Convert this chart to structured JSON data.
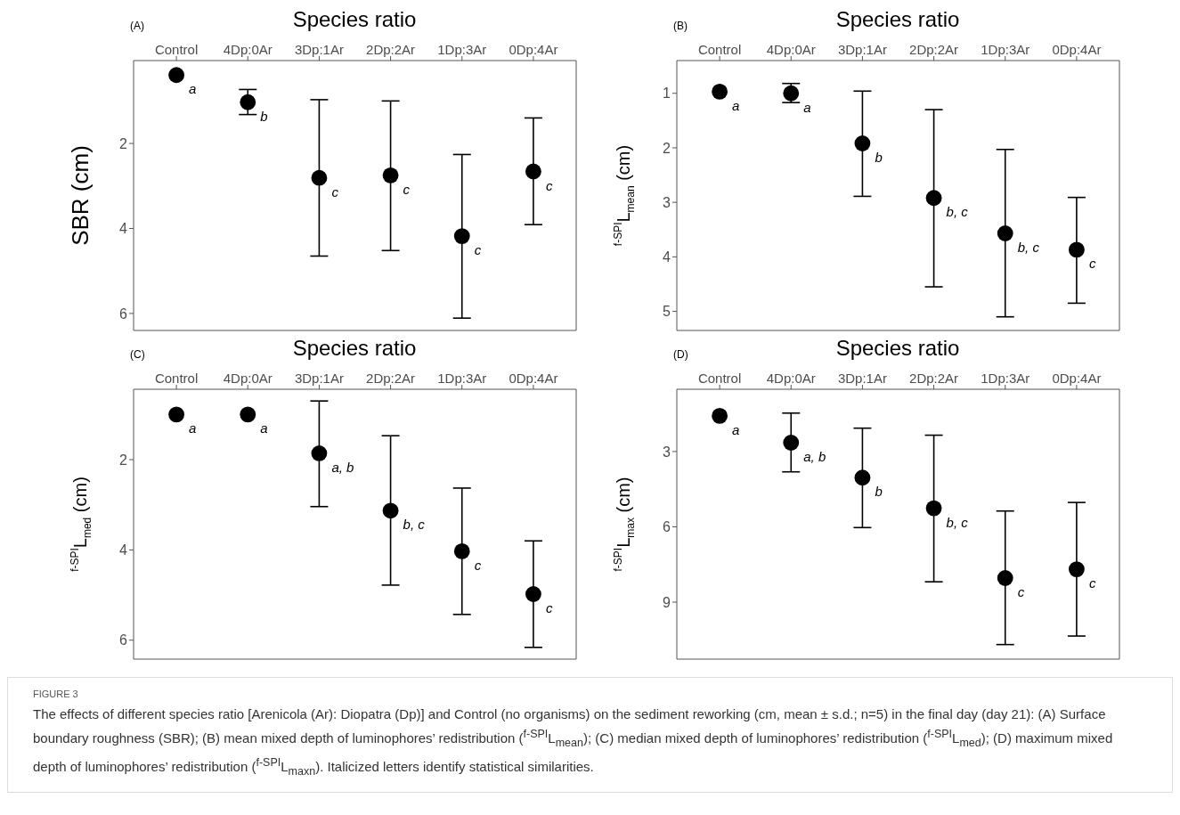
{
  "chart_data": [
    {
      "type": "scatter",
      "title": "(A)",
      "xlabel": "Species ratio",
      "ylabel": "SBR (cm)",
      "categories": [
        "Control",
        "4Dp:0Ar",
        "3Dp:1Ar",
        "2Dp:2Ar",
        "1Dp:3Ar",
        "0Dp:4Ar"
      ],
      "series": [
        {
          "color": "#000000",
          "values": [
            0.39,
            1.03,
            2.81,
            2.75,
            4.18,
            2.66
          ],
          "errors": [
            null,
            [
              0.73,
              1.32
            ],
            [
              0.97,
              4.65
            ],
            [
              1.0,
              4.52
            ],
            [
              2.26,
              6.11
            ],
            [
              1.4,
              3.91
            ]
          ]
        }
      ],
      "ylim": [
        6.4,
        0.05
      ],
      "yticks": [
        2,
        4,
        6
      ],
      "marker": "circle",
      "annotations": [
        {
          "text": "a",
          "x": "Control",
          "y": 0.39
        },
        {
          "text": "b",
          "x": "4Dp:0Ar",
          "y": 1.03
        },
        {
          "text": "c",
          "x": "3Dp:1Ar",
          "y": 2.81
        },
        {
          "text": "c",
          "x": "2Dp:2Ar",
          "y": 2.75
        },
        {
          "text": "c",
          "x": "1Dp:3Ar",
          "y": 4.18
        },
        {
          "text": "c",
          "x": "0Dp:4Ar",
          "y": 2.66
        },
        "FIGURE 3",
        "The effects of different species ratio [Arenicola (Ar): Diopatra (Dp)] and Control (no organisms) on the sediment reworking (cm, mean ± s.d.; n=5) in the final day (day 21): (A) Surface boundary roughness (SBR); (B) mean mixed depth of luminophores’ redistribution ($^{f-SPI}$L$_{mean}$); (C) median mixed depth of luminophores’ redistribution ($^{f-SPI}$L$_{med}$); (D) maximum mixed depth of luminophores’ redistribution ($^{f-SPI}$L$_{maxn}$). Italicized letters identify statistical similarities."
      ]
    },
    {
      "type": "scatter",
      "title": "(B)",
      "xlabel": "Species ratio",
      "ylabel": "$^{f-SPI}$L$_{mean}$ (cm)",
      "categories": [
        "Control",
        "4Dp:0Ar",
        "3Dp:1Ar",
        "2Dp:2Ar",
        "1Dp:3Ar",
        "0Dp:4Ar"
      ],
      "series": [
        {
          "color": "#000000",
          "values": [
            0.97,
            1.0,
            1.92,
            2.92,
            3.57,
            3.87
          ],
          "errors": [
            null,
            [
              0.82,
              1.17
            ],
            [
              0.96,
              2.89
            ],
            [
              1.3,
              4.55
            ],
            [
              2.03,
              5.1
            ],
            [
              2.91,
              4.85
            ]
          ]
        }
      ],
      "ylim": [
        5.35,
        0.4
      ],
      "yticks": [
        1,
        2,
        3,
        4,
        5
      ],
      "marker": "circle",
      "annotations": [
        {
          "text": "a",
          "x": "Control",
          "y": 0.97
        },
        {
          "text": "a",
          "x": "4Dp:0Ar",
          "y": 1.0
        },
        {
          "text": "b",
          "x": "3Dp:1Ar",
          "y": 1.92
        },
        {
          "text": "b, c",
          "x": "2Dp:2Ar",
          "y": 2.92
        },
        {
          "text": "b, c",
          "x": "1Dp:3Ar",
          "y": 3.57
        },
        {
          "text": "c",
          "x": "0Dp:4Ar",
          "y": 3.87
        }
      ]
    },
    {
      "type": "scatter",
      "title": "(C)",
      "xlabel": "Species ratio",
      "ylabel": "$^{f-SPI}$L$_{med}$ (cm)",
      "categories": [
        "Control",
        "4Dp:0Ar",
        "3Dp:1Ar",
        "2Dp:2Ar",
        "1Dp:3Ar",
        "0Dp:4Ar"
      ],
      "series": [
        {
          "color": "#000000",
          "values": [
            1.0,
            1.0,
            1.86,
            3.13,
            4.03,
            4.98
          ],
          "errors": [
            null,
            null,
            [
              0.7,
              3.04
            ],
            [
              1.47,
              4.78
            ],
            [
              2.63,
              5.43
            ],
            [
              3.8,
              6.16
            ]
          ]
        }
      ],
      "ylim": [
        6.42,
        0.44
      ],
      "yticks": [
        2,
        4,
        6
      ],
      "marker": "circle",
      "annotations": [
        {
          "text": "a",
          "x": "Control",
          "y": 1.0
        },
        {
          "text": "a",
          "x": "4Dp:0Ar",
          "y": 1.0
        },
        {
          "text": "a, b",
          "x": "3Dp:1Ar",
          "y": 1.86
        },
        {
          "text": "b, c",
          "x": "2Dp:2Ar",
          "y": 3.13
        },
        {
          "text": "c",
          "x": "1Dp:3Ar",
          "y": 4.03
        },
        {
          "text": "c",
          "x": "0Dp:4Ar",
          "y": 4.98
        }
      ]
    },
    {
      "type": "scatter",
      "title": "(D)",
      "xlabel": "Species ratio",
      "ylabel": "$^{f-SPI}$L$_{max}$ (cm)",
      "categories": [
        "Control",
        "4Dp:0Ar",
        "3Dp:1Ar",
        "2Dp:2Ar",
        "1Dp:3Ar",
        "0Dp:4Ar"
      ],
      "series": [
        {
          "color": "#000000",
          "values": [
            1.58,
            2.65,
            4.04,
            5.26,
            8.04,
            7.69
          ],
          "errors": [
            null,
            [
              1.47,
              3.81
            ],
            [
              2.07,
              6.03
            ],
            [
              2.35,
              8.19
            ],
            [
              5.37,
              10.69
            ],
            [
              5.03,
              10.35
            ]
          ]
        }
      ],
      "ylim": [
        11.27,
        0.52
      ],
      "yticks": [
        3,
        6,
        9
      ],
      "marker": "circle",
      "annotations": [
        {
          "text": "a",
          "x": "Control",
          "y": 1.58
        },
        {
          "text": "a, b",
          "x": "4Dp:0Ar",
          "y": 2.65
        },
        {
          "text": "b",
          "x": "3Dp:1Ar",
          "y": 4.04
        },
        {
          "text": "b, c",
          "x": "2Dp:2Ar",
          "y": 5.26
        },
        {
          "text": "c",
          "x": "1Dp:3Ar",
          "y": 8.04
        },
        {
          "text": "c",
          "x": "0Dp:4Ar",
          "y": 7.69
        }
      ]
    }
  ]
}
